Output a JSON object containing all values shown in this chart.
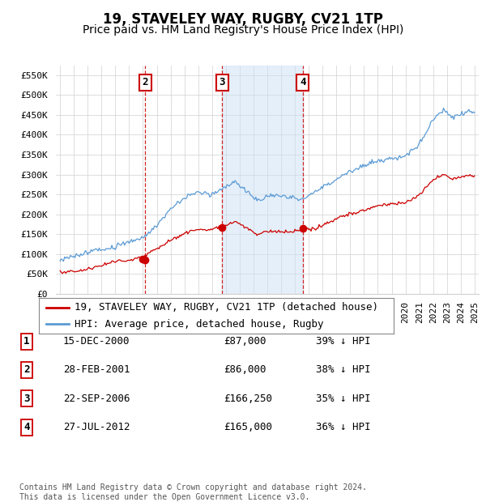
{
  "title": "19, STAVELEY WAY, RUGBY, CV21 1TP",
  "subtitle": "Price paid vs. HM Land Registry's House Price Index (HPI)",
  "ylim": [
    0,
    575000
  ],
  "yticks": [
    0,
    50000,
    100000,
    150000,
    200000,
    250000,
    300000,
    350000,
    400000,
    450000,
    500000,
    550000
  ],
  "ytick_labels": [
    "£0",
    "£50K",
    "£100K",
    "£150K",
    "£200K",
    "£250K",
    "£300K",
    "£350K",
    "£400K",
    "£450K",
    "£500K",
    "£550K"
  ],
  "sale_dates_year": [
    2000.958,
    2001.163,
    2006.722,
    2012.578
  ],
  "sale_prices": [
    87000,
    86000,
    166250,
    165000
  ],
  "sale_labels": [
    "1",
    "2",
    "3",
    "4"
  ],
  "sale_color": "#cc0000",
  "hpi_color": "#5b9bd5",
  "hpi_fill_color": "#cce0f5",
  "vline_color": "#cc0000",
  "grid_color": "#d0d0d0",
  "background_color": "#ffffff",
  "legend_label_sale": "19, STAVELEY WAY, RUGBY, CV21 1TP (detached house)",
  "legend_label_hpi": "HPI: Average price, detached house, Rugby",
  "table_rows": [
    [
      "1",
      "15-DEC-2000",
      "£87,000",
      "39% ↓ HPI"
    ],
    [
      "2",
      "28-FEB-2001",
      "£86,000",
      "38% ↓ HPI"
    ],
    [
      "3",
      "22-SEP-2006",
      "£166,250",
      "35% ↓ HPI"
    ],
    [
      "4",
      "27-JUL-2012",
      "£165,000",
      "36% ↓ HPI"
    ]
  ],
  "footnote": "Contains HM Land Registry data © Crown copyright and database right 2024.\nThis data is licensed under the Open Government Licence v3.0.",
  "title_fontsize": 12,
  "subtitle_fontsize": 10,
  "tick_fontsize": 8,
  "legend_fontsize": 9,
  "table_fontsize": 9,
  "footnote_fontsize": 7
}
